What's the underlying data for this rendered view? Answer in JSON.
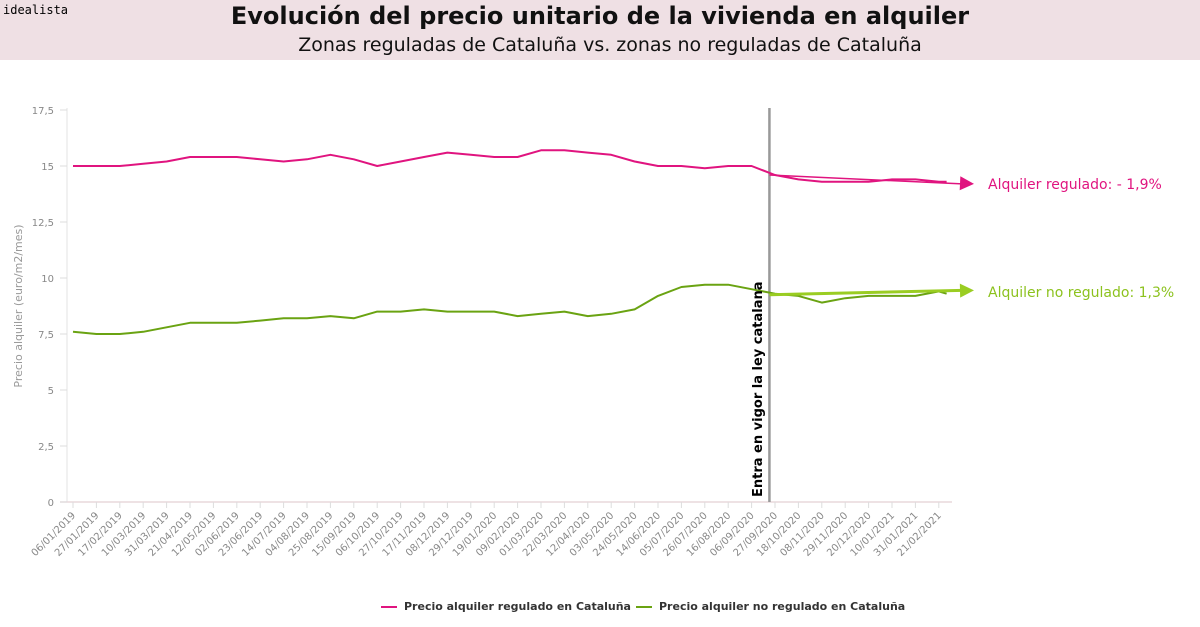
{
  "brand": "idealista",
  "header": {
    "title": "Evolución del precio unitario de la vivienda en alquiler",
    "subtitle": "Zonas reguladas de Cataluña vs. zonas no reguladas de Cataluña"
  },
  "chart_data": {
    "type": "line",
    "title": "Evolución del precio unitario de la vivienda en alquiler",
    "subtitle": "Zonas reguladas de Cataluña vs. zonas no reguladas de Cataluña",
    "xlabel": "",
    "ylabel": "Precio alquiler (euro/m2/mes)",
    "ylim": [
      0,
      17.5
    ],
    "yticks": [
      "0",
      "2,5",
      "5",
      "7,5",
      "10",
      "12,5",
      "15",
      "17,5"
    ],
    "grid": false,
    "legend_position": "bottom",
    "x": [
      "06/01/2019",
      "27/01/2019",
      "17/02/2019",
      "10/03/2019",
      "31/03/2019",
      "21/04/2019",
      "12/05/2019",
      "02/06/2019",
      "23/06/2019",
      "14/07/2019",
      "04/08/2019",
      "25/08/2019",
      "15/09/2019",
      "06/10/2019",
      "27/10/2019",
      "17/11/2019",
      "08/12/2019",
      "29/12/2019",
      "19/01/2020",
      "09/02/2020",
      "01/03/2020",
      "22/03/2020",
      "12/04/2020",
      "03/05/2020",
      "24/05/2020",
      "14/06/2020",
      "05/07/2020",
      "26/07/2020",
      "16/08/2020",
      "06/09/2020",
      "27/09/2020",
      "18/10/2020",
      "08/11/2020",
      "29/11/2020",
      "20/12/2020",
      "10/01/2021",
      "31/01/2021",
      "21/02/2021",
      "28/02/2021"
    ],
    "xtick_labels": [
      "06/01/2019",
      "27/01/2019",
      "17/02/2019",
      "10/03/2019",
      "31/03/2019",
      "21/04/2019",
      "12/05/2019",
      "02/06/2019",
      "23/06/2019",
      "14/07/2019",
      "04/08/2019",
      "25/08/2019",
      "15/09/2019",
      "06/10/2019",
      "27/10/2019",
      "17/11/2019",
      "08/12/2019",
      "29/12/2019",
      "19/01/2020",
      "09/02/2020",
      "01/03/2020",
      "22/03/2020",
      "12/04/2020",
      "03/05/2020",
      "24/05/2020",
      "14/06/2020",
      "05/07/2020",
      "26/07/2020",
      "16/08/2020",
      "06/09/2020",
      "27/09/2020",
      "18/10/2020",
      "08/11/2020",
      "29/11/2020",
      "20/12/2020",
      "10/01/2021",
      "31/01/2021",
      "21/02/2021"
    ],
    "series": [
      {
        "name": "Precio alquiler regulado en Cataluña",
        "color": "#e0147f",
        "values": [
          15.0,
          15.0,
          15.0,
          15.1,
          15.2,
          15.4,
          15.4,
          15.4,
          15.3,
          15.2,
          15.3,
          15.5,
          15.3,
          15.0,
          15.2,
          15.4,
          15.6,
          15.5,
          15.4,
          15.4,
          15.7,
          15.7,
          15.6,
          15.5,
          15.2,
          15.0,
          15.0,
          14.9,
          15.0,
          15.0,
          14.6,
          14.4,
          14.3,
          14.3,
          14.3,
          14.4,
          14.4,
          14.3,
          14.3
        ]
      },
      {
        "name": "Precio alquiler no regulado en Cataluña",
        "color": "#6aa312",
        "values": [
          7.6,
          7.5,
          7.5,
          7.6,
          7.8,
          8.0,
          8.0,
          8.0,
          8.1,
          8.2,
          8.2,
          8.3,
          8.2,
          8.5,
          8.5,
          8.6,
          8.5,
          8.5,
          8.5,
          8.3,
          8.4,
          8.5,
          8.3,
          8.4,
          8.6,
          9.2,
          9.6,
          9.7,
          9.7,
          9.5,
          9.3,
          9.2,
          8.9,
          9.1,
          9.2,
          9.2,
          9.2,
          9.4,
          9.3
        ]
      }
    ],
    "event_line": {
      "date": "22/09/2020",
      "label": "Entra en vigor la ley catalana",
      "color": "#999999"
    },
    "trend_annotations": [
      {
        "label": "Alquiler regulado: - 1,9%",
        "color": "#e0147f",
        "from": 14.6,
        "to": 14.2
      },
      {
        "label": "Alquiler no regulado: 1,3%",
        "color": "#9acd22",
        "from": 9.25,
        "to": 9.45
      }
    ]
  }
}
